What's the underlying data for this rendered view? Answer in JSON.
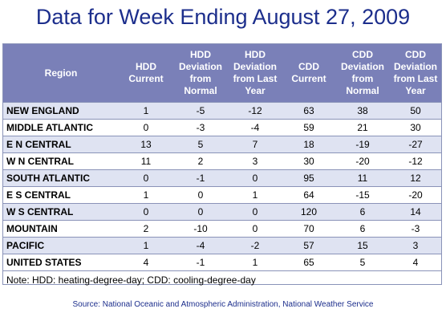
{
  "title": "Data for Week Ending August 27, 2009",
  "chart_data": {
    "type": "table",
    "columns": [
      "Region",
      "HDD Current",
      "HDD Deviation from Normal",
      "HDD Deviation from Last Year",
      "CDD Current",
      "CDD Deviation from Normal",
      "CDD Deviation from Last Year"
    ],
    "rows": [
      [
        "NEW ENGLAND",
        "1",
        "-5",
        "-12",
        "63",
        "38",
        "50"
      ],
      [
        "MIDDLE ATLANTIC",
        "0",
        "-3",
        "-4",
        "59",
        "21",
        "30"
      ],
      [
        "E N CENTRAL",
        "13",
        "5",
        "7",
        "18",
        "-19",
        "-27"
      ],
      [
        "W N CENTRAL",
        "11",
        "2",
        "3",
        "30",
        "-20",
        "-12"
      ],
      [
        "SOUTH ATLANTIC",
        "0",
        "-1",
        "0",
        "95",
        "11",
        "12"
      ],
      [
        "E S CENTRAL",
        "1",
        "0",
        "1",
        "64",
        "-15",
        "-20"
      ],
      [
        "W S CENTRAL",
        "0",
        "0",
        "0",
        "120",
        "6",
        "14"
      ],
      [
        "MOUNTAIN",
        "2",
        "-10",
        "0",
        "70",
        "6",
        "-3"
      ],
      [
        "PACIFIC",
        "1",
        "-4",
        "-2",
        "57",
        "15",
        "3"
      ],
      [
        "UNITED STATES",
        "4",
        "-1",
        "1",
        "65",
        "5",
        "4"
      ]
    ]
  },
  "note": "Note: HDD: heating-degree-day; CDD: cooling-degree-day",
  "source": "Source:  National Oceanic and Atmospheric Administration, National Weather Service",
  "colors": {
    "header_bg": "#7a80b8",
    "alt_row": "#dfe3f2",
    "title": "#1c2e8c"
  }
}
